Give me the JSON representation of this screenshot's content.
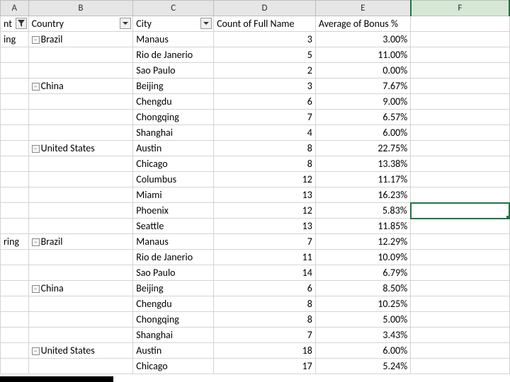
{
  "colors": {
    "selection_border": "#217346",
    "col_header_bg": "#e6e6e6",
    "col_header_selected_bg": "#d6e8d5",
    "gridline": "#d4d4d4"
  },
  "column_letters": [
    "A",
    "B",
    "C",
    "D",
    "E",
    "F"
  ],
  "selected_column_index": 5,
  "selected_cell": {
    "row_index": 11,
    "col_index": 5
  },
  "headers": {
    "A": {
      "label": "nt",
      "has_filter": true,
      "filtered": true
    },
    "B": {
      "label": "Country",
      "has_filter": true,
      "filtered": false
    },
    "C": {
      "label": "City",
      "has_filter": true,
      "filtered": false
    },
    "D": {
      "label": "Count of Full Name",
      "has_filter": false
    },
    "E": {
      "label": "Average of Bonus %",
      "has_filter": false
    }
  },
  "rows": [
    {
      "A": "ing",
      "B": "Brazil",
      "B_group": true,
      "C": "Manaus",
      "D": "3",
      "E": "3.00%"
    },
    {
      "A": "",
      "B": "",
      "C": "Rio de Janerio",
      "D": "5",
      "E": "11.00%"
    },
    {
      "A": "",
      "B": "",
      "C": "Sao Paulo",
      "D": "2",
      "E": "0.00%"
    },
    {
      "A": "",
      "B": "China",
      "B_group": true,
      "C": "Beijing",
      "D": "3",
      "E": "7.67%"
    },
    {
      "A": "",
      "B": "",
      "C": "Chengdu",
      "D": "6",
      "E": "9.00%"
    },
    {
      "A": "",
      "B": "",
      "C": "Chongqing",
      "D": "7",
      "E": "6.57%"
    },
    {
      "A": "",
      "B": "",
      "C": "Shanghai",
      "D": "4",
      "E": "6.00%"
    },
    {
      "A": "",
      "B": "United States",
      "B_group": true,
      "C": "Austin",
      "D": "8",
      "E": "22.75%"
    },
    {
      "A": "",
      "B": "",
      "C": "Chicago",
      "D": "8",
      "E": "13.38%"
    },
    {
      "A": "",
      "B": "",
      "C": "Columbus",
      "D": "12",
      "E": "11.17%"
    },
    {
      "A": "",
      "B": "",
      "C": "Miami",
      "D": "13",
      "E": "16.23%"
    },
    {
      "A": "",
      "B": "",
      "C": "Phoenix",
      "D": "12",
      "E": "5.83%"
    },
    {
      "A": "",
      "B": "",
      "C": "Seattle",
      "D": "13",
      "E": "11.85%"
    },
    {
      "A": "ring",
      "B": "Brazil",
      "B_group": true,
      "C": "Manaus",
      "D": "7",
      "E": "12.29%"
    },
    {
      "A": "",
      "B": "",
      "C": "Rio de Janerio",
      "D": "11",
      "E": "10.09%"
    },
    {
      "A": "",
      "B": "",
      "C": "Sao Paulo",
      "D": "14",
      "E": "6.79%"
    },
    {
      "A": "",
      "B": "China",
      "B_group": true,
      "C": "Beijing",
      "D": "6",
      "E": "8.50%"
    },
    {
      "A": "",
      "B": "",
      "C": "Chengdu",
      "D": "8",
      "E": "10.25%"
    },
    {
      "A": "",
      "B": "",
      "C": "Chongqing",
      "D": "8",
      "E": "5.00%"
    },
    {
      "A": "",
      "B": "",
      "C": "Shanghai",
      "D": "7",
      "E": "3.43%"
    },
    {
      "A": "",
      "B": "United States",
      "B_group": true,
      "C": "Austin",
      "D": "18",
      "E": "6.00%"
    },
    {
      "A": "",
      "B": "",
      "C": "Chicago",
      "D": "17",
      "E": "5.24%"
    }
  ]
}
